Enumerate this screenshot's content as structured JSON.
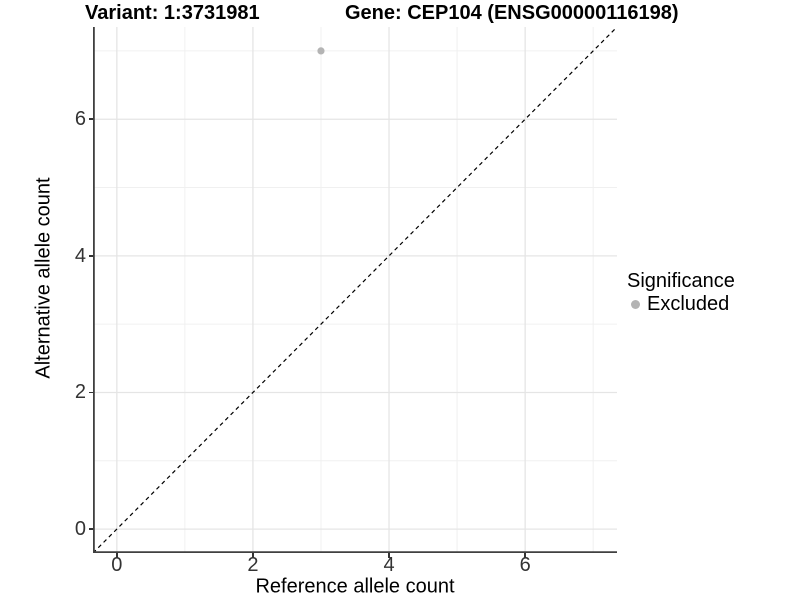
{
  "chart_data": {
    "type": "scatter",
    "title_left": "Variant: 1:3731981",
    "title_right": "Gene: CEP104 (ENSG00000116198)",
    "xlabel": "Reference allele count",
    "ylabel": "Alternative allele count",
    "xlim": [
      -0.35,
      7.35
    ],
    "ylim": [
      -0.35,
      7.35
    ],
    "xticks": [
      0,
      2,
      4,
      6
    ],
    "yticks": [
      0,
      2,
      4,
      6
    ],
    "minor_gridlines": [
      1,
      3,
      5,
      7
    ],
    "grid": "on",
    "points": [
      {
        "x": 3,
        "y": 7,
        "series": "Excluded"
      }
    ],
    "identity_line": {
      "slope": 1,
      "intercept": 0,
      "style": "dashed",
      "color": "#000000"
    },
    "legend": {
      "position": "right",
      "title": "Significance",
      "entries": [
        {
          "label": "Excluded",
          "color": "#b4b4b4"
        }
      ]
    },
    "colors": {
      "point": "#b4b4b4",
      "grid_major": "#e5e5e5",
      "grid_minor": "#f0f0f0",
      "axis_line": "#404040",
      "tick_text": "#333333"
    }
  }
}
